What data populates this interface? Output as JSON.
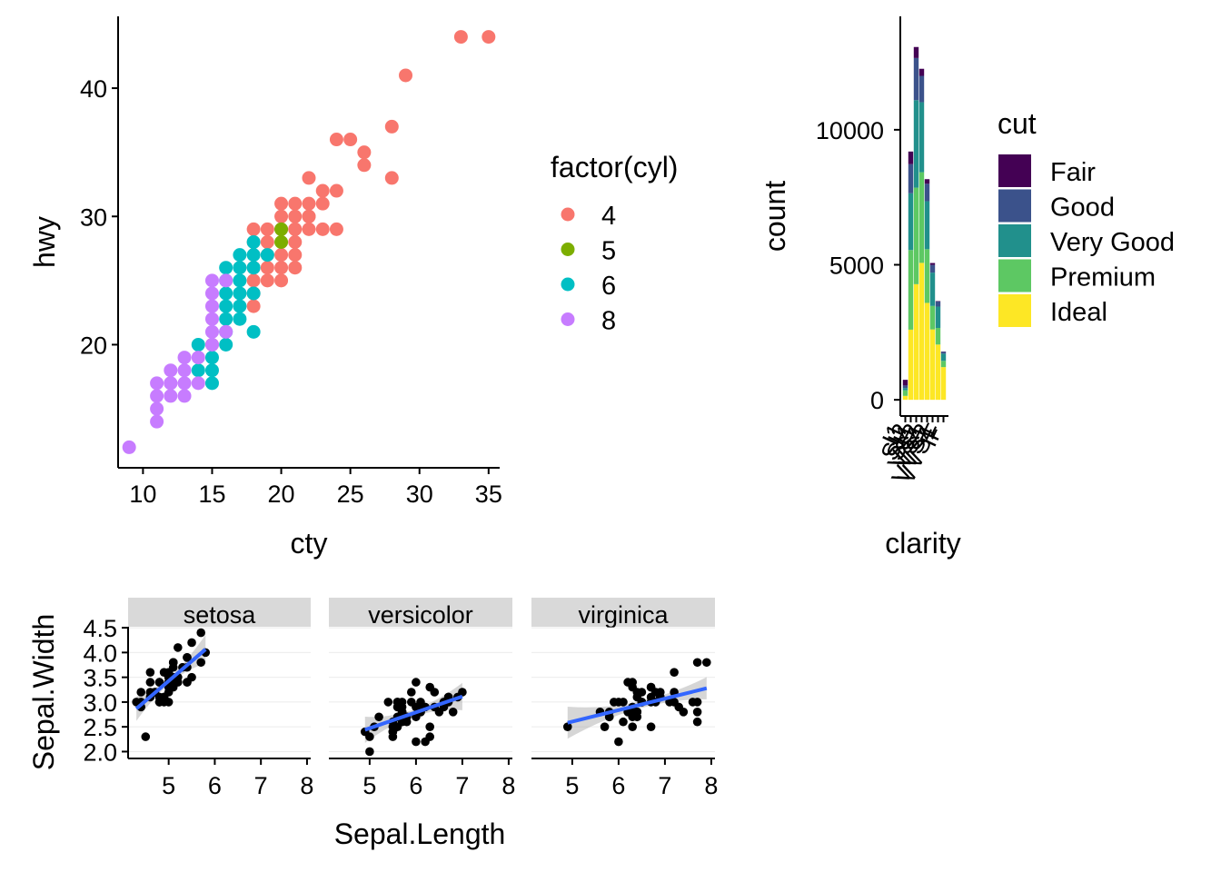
{
  "chart_data": [
    {
      "id": "mpg_scatter",
      "type": "scatter",
      "title": "",
      "xlabel": "cty",
      "ylabel": "hwy",
      "xlim": [
        8.2,
        35.8
      ],
      "ylim": [
        10.4,
        45.6
      ],
      "xticks": [
        10,
        15,
        20,
        25,
        30,
        35
      ],
      "yticks": [
        20,
        30,
        40
      ],
      "grid": false,
      "legend": {
        "title": "factor(cyl)",
        "position": "right"
      },
      "series": [
        {
          "name": "4",
          "color": "#F8766D",
          "points": [
            [
              33,
              44
            ],
            [
              35,
              44
            ],
            [
              29,
              41
            ],
            [
              28,
              37
            ],
            [
              24,
              36
            ],
            [
              25,
              36
            ],
            [
              26,
              35
            ],
            [
              26,
              34
            ],
            [
              22,
              33
            ],
            [
              28,
              33
            ],
            [
              23,
              32
            ],
            [
              24,
              32
            ],
            [
              22,
              31
            ],
            [
              21,
              31
            ],
            [
              20,
              31
            ],
            [
              19,
              29
            ],
            [
              20,
              29
            ],
            [
              21,
              29
            ],
            [
              22,
              29
            ],
            [
              23,
              29
            ],
            [
              24,
              29
            ],
            [
              20,
              30
            ],
            [
              21,
              30
            ],
            [
              22,
              30
            ],
            [
              23,
              31
            ],
            [
              21,
              28
            ],
            [
              19,
              28
            ],
            [
              18,
              29
            ],
            [
              18,
              28
            ],
            [
              19,
              27
            ],
            [
              20,
              27
            ],
            [
              21,
              27
            ],
            [
              18,
              26
            ],
            [
              19,
              26
            ],
            [
              20,
              26
            ],
            [
              21,
              26
            ],
            [
              18,
              25
            ],
            [
              19,
              25
            ],
            [
              20,
              25
            ],
            [
              18,
              24
            ],
            [
              18,
              23
            ],
            [
              15,
              20
            ],
            [
              22,
              30
            ],
            [
              21,
              29
            ]
          ]
        },
        {
          "name": "5",
          "color": "#7CAE00",
          "points": [
            [
              20,
              29
            ],
            [
              20,
              28
            ]
          ]
        },
        {
          "name": "6",
          "color": "#00BFC4",
          "points": [
            [
              18,
              28
            ],
            [
              17,
              27
            ],
            [
              18,
              27
            ],
            [
              19,
              27
            ],
            [
              16,
              26
            ],
            [
              17,
              26
            ],
            [
              18,
              26
            ],
            [
              17,
              25
            ],
            [
              16,
              24
            ],
            [
              17,
              24
            ],
            [
              18,
              24
            ],
            [
              16,
              23
            ],
            [
              17,
              23
            ],
            [
              16,
              22
            ],
            [
              17,
              22
            ],
            [
              16,
              21
            ],
            [
              18,
              21
            ],
            [
              14,
              20
            ],
            [
              15,
              19
            ],
            [
              14,
              18
            ],
            [
              15,
              18
            ],
            [
              16,
              20
            ],
            [
              15,
              17
            ],
            [
              16,
              25
            ]
          ]
        },
        {
          "name": "8",
          "color": "#C77CFF",
          "points": [
            [
              15,
              25
            ],
            [
              16,
              25
            ],
            [
              15,
              24
            ],
            [
              15,
              23
            ],
            [
              15,
              22
            ],
            [
              15,
              21
            ],
            [
              16,
              21
            ],
            [
              14,
              19
            ],
            [
              13,
              19
            ],
            [
              13,
              18
            ],
            [
              12,
              18
            ],
            [
              12,
              17
            ],
            [
              11,
              17
            ],
            [
              11,
              16
            ],
            [
              12,
              16
            ],
            [
              13,
              16
            ],
            [
              11,
              15
            ],
            [
              11,
              14
            ],
            [
              12,
              17
            ],
            [
              9,
              12
            ],
            [
              14,
              17
            ],
            [
              13,
              17
            ],
            [
              15,
              20
            ]
          ]
        }
      ]
    },
    {
      "id": "diamonds_bar",
      "type": "bar",
      "stacked": true,
      "title": "",
      "xlabel": "clarity",
      "ylabel": "count",
      "categories": [
        "I1",
        "SI2",
        "SI1",
        "VS2",
        "VS1",
        "VVS2",
        "VVS1",
        "IF"
      ],
      "ylim": [
        -600,
        14200
      ],
      "yticks": [
        0,
        5000,
        10000
      ],
      "grid": false,
      "legend": {
        "title": "cut",
        "position": "right"
      },
      "series": [
        {
          "name": "Fair",
          "color": "#440154",
          "values": [
            210,
            466,
            408,
            261,
            170,
            69,
            17,
            9
          ]
        },
        {
          "name": "Good",
          "color": "#3B528B",
          "values": [
            96,
            1081,
            1560,
            978,
            648,
            286,
            186,
            71
          ]
        },
        {
          "name": "Very Good",
          "color": "#21908C",
          "values": [
            84,
            2100,
            3240,
            2591,
            1775,
            1235,
            789,
            268
          ]
        },
        {
          "name": "Premium",
          "color": "#5DC863",
          "values": [
            205,
            2949,
            3575,
            3357,
            1989,
            870,
            616,
            230
          ]
        },
        {
          "name": "Ideal",
          "color": "#FDE725",
          "values": [
            146,
            2598,
            4282,
            5071,
            3589,
            2606,
            2047,
            1212
          ]
        }
      ]
    },
    {
      "id": "iris_facets",
      "type": "scatter",
      "title": "",
      "xlabel": "Sepal.Length",
      "ylabel": "Sepal.Width",
      "xlim": [
        4.12,
        8.08
      ],
      "ylim": [
        1.88,
        4.52
      ],
      "xticks": [
        5,
        6,
        7,
        8
      ],
      "yticks": [
        2.0,
        2.5,
        3.0,
        3.5,
        4.0,
        4.5
      ],
      "ytick_labels": [
        "2.0",
        "2.5",
        "3.0",
        "3.5",
        "4.0",
        "4.5"
      ],
      "smooth": "lm with confidence band",
      "smooth_color": "#3366FF",
      "panels": [
        {
          "label": "setosa",
          "fit": {
            "intercept": -0.569,
            "slope": 0.799
          },
          "points": [
            [
              5.1,
              3.5
            ],
            [
              4.9,
              3.0
            ],
            [
              4.7,
              3.2
            ],
            [
              4.6,
              3.1
            ],
            [
              5.0,
              3.6
            ],
            [
              5.4,
              3.9
            ],
            [
              4.6,
              3.4
            ],
            [
              5.0,
              3.4
            ],
            [
              4.4,
              2.9
            ],
            [
              4.9,
              3.1
            ],
            [
              5.4,
              3.7
            ],
            [
              4.8,
              3.4
            ],
            [
              4.8,
              3.0
            ],
            [
              4.3,
              3.0
            ],
            [
              5.8,
              4.0
            ],
            [
              5.7,
              4.4
            ],
            [
              5.4,
              3.9
            ],
            [
              5.1,
              3.5
            ],
            [
              5.7,
              3.8
            ],
            [
              5.1,
              3.8
            ],
            [
              5.4,
              3.4
            ],
            [
              5.1,
              3.7
            ],
            [
              4.6,
              3.6
            ],
            [
              5.1,
              3.3
            ],
            [
              4.8,
              3.4
            ],
            [
              5.0,
              3.0
            ],
            [
              5.0,
              3.4
            ],
            [
              5.2,
              3.5
            ],
            [
              5.2,
              3.4
            ],
            [
              4.7,
              3.2
            ],
            [
              4.8,
              3.1
            ],
            [
              5.4,
              3.4
            ],
            [
              5.2,
              4.1
            ],
            [
              5.5,
              4.2
            ],
            [
              4.9,
              3.1
            ],
            [
              5.0,
              3.2
            ],
            [
              5.5,
              3.5
            ],
            [
              4.9,
              3.6
            ],
            [
              4.4,
              3.0
            ],
            [
              5.1,
              3.4
            ],
            [
              5.0,
              3.5
            ],
            [
              4.5,
              2.3
            ],
            [
              4.4,
              3.2
            ],
            [
              5.0,
              3.5
            ],
            [
              5.1,
              3.8
            ],
            [
              4.8,
              3.0
            ],
            [
              5.1,
              3.8
            ],
            [
              4.6,
              3.2
            ],
            [
              5.3,
              3.7
            ],
            [
              5.0,
              3.3
            ]
          ]
        },
        {
          "label": "versicolor",
          "fit": {
            "intercept": 0.872,
            "slope": 0.32
          },
          "points": [
            [
              7.0,
              3.2
            ],
            [
              6.4,
              3.2
            ],
            [
              6.9,
              3.1
            ],
            [
              5.5,
              2.3
            ],
            [
              6.5,
              2.8
            ],
            [
              5.7,
              2.8
            ],
            [
              6.3,
              3.3
            ],
            [
              4.9,
              2.4
            ],
            [
              6.6,
              2.9
            ],
            [
              5.2,
              2.7
            ],
            [
              5.0,
              2.0
            ],
            [
              5.9,
              3.0
            ],
            [
              6.0,
              2.2
            ],
            [
              6.1,
              2.9
            ],
            [
              5.6,
              2.9
            ],
            [
              6.7,
              3.1
            ],
            [
              5.6,
              3.0
            ],
            [
              5.8,
              2.7
            ],
            [
              6.2,
              2.2
            ],
            [
              5.6,
              2.5
            ],
            [
              5.9,
              3.2
            ],
            [
              6.1,
              2.8
            ],
            [
              6.3,
              2.5
            ],
            [
              6.1,
              2.8
            ],
            [
              6.4,
              2.9
            ],
            [
              6.6,
              3.0
            ],
            [
              6.8,
              2.8
            ],
            [
              6.7,
              3.0
            ],
            [
              6.0,
              2.9
            ],
            [
              5.7,
              2.6
            ],
            [
              5.5,
              2.4
            ],
            [
              5.5,
              2.4
            ],
            [
              5.8,
              2.7
            ],
            [
              6.0,
              2.7
            ],
            [
              5.4,
              3.0
            ],
            [
              6.0,
              3.4
            ],
            [
              6.7,
              3.1
            ],
            [
              6.3,
              2.3
            ],
            [
              5.6,
              3.0
            ],
            [
              5.5,
              2.5
            ],
            [
              5.5,
              2.6
            ],
            [
              6.1,
              3.0
            ],
            [
              5.8,
              2.6
            ],
            [
              5.0,
              2.3
            ],
            [
              5.6,
              2.7
            ],
            [
              5.7,
              3.0
            ],
            [
              5.7,
              2.9
            ],
            [
              6.2,
              2.9
            ],
            [
              5.1,
              2.5
            ],
            [
              5.7,
              2.8
            ]
          ]
        },
        {
          "label": "virginica",
          "fit": {
            "intercept": 1.446,
            "slope": 0.232
          },
          "points": [
            [
              6.3,
              3.3
            ],
            [
              5.8,
              2.7
            ],
            [
              7.1,
              3.0
            ],
            [
              6.3,
              2.9
            ],
            [
              6.5,
              3.0
            ],
            [
              7.6,
              3.0
            ],
            [
              4.9,
              2.5
            ],
            [
              7.3,
              2.9
            ],
            [
              6.7,
              2.5
            ],
            [
              7.2,
              3.6
            ],
            [
              6.5,
              3.2
            ],
            [
              6.4,
              2.7
            ],
            [
              6.8,
              3.0
            ],
            [
              5.7,
              2.5
            ],
            [
              5.8,
              2.8
            ],
            [
              6.4,
              3.2
            ],
            [
              6.5,
              3.0
            ],
            [
              7.7,
              3.8
            ],
            [
              7.7,
              2.6
            ],
            [
              6.0,
              2.2
            ],
            [
              6.9,
              3.2
            ],
            [
              5.6,
              2.8
            ],
            [
              7.7,
              2.8
            ],
            [
              6.3,
              2.7
            ],
            [
              6.7,
              3.3
            ],
            [
              7.2,
              3.2
            ],
            [
              6.2,
              2.8
            ],
            [
              6.1,
              3.0
            ],
            [
              6.4,
              2.8
            ],
            [
              7.2,
              3.0
            ],
            [
              7.4,
              2.8
            ],
            [
              7.9,
              3.8
            ],
            [
              6.4,
              2.8
            ],
            [
              6.3,
              2.8
            ],
            [
              6.1,
              2.6
            ],
            [
              7.7,
              3.0
            ],
            [
              6.3,
              3.4
            ],
            [
              6.4,
              3.1
            ],
            [
              6.0,
              3.0
            ],
            [
              6.9,
              3.1
            ],
            [
              6.7,
              3.1
            ],
            [
              6.9,
              3.1
            ],
            [
              5.8,
              2.7
            ],
            [
              6.8,
              3.2
            ],
            [
              6.7,
              3.3
            ],
            [
              6.7,
              3.0
            ],
            [
              6.3,
              2.5
            ],
            [
              6.5,
              3.0
            ],
            [
              6.2,
              3.4
            ],
            [
              5.9,
              3.0
            ]
          ]
        }
      ]
    }
  ]
}
